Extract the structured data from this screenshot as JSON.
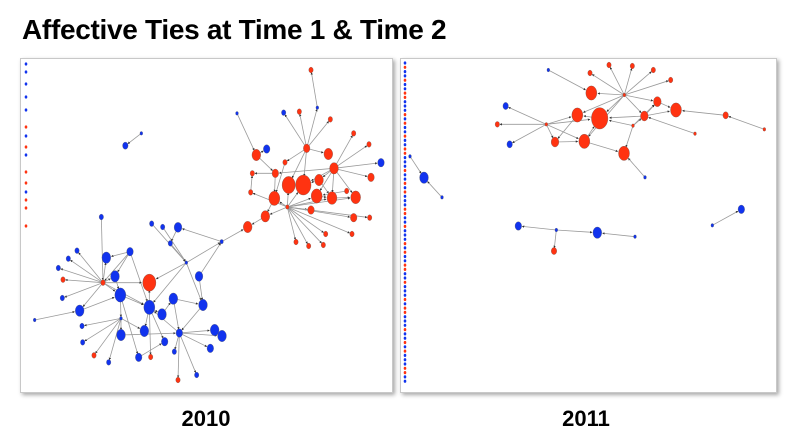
{
  "slide": {
    "title": "Affective Ties at Time 1 & Time 2"
  },
  "panels": [
    {
      "label": "2010"
    },
    {
      "label": "2011"
    }
  ],
  "colors": {
    "group_a": "#ff3311",
    "group_b": "#1133ee",
    "edge": "#9a9a9a"
  }
}
